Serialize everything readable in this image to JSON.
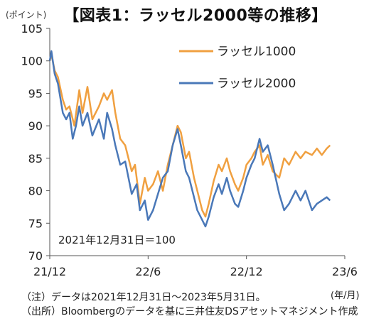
{
  "chart_data": {
    "type": "line",
    "title": "【図表1：ラッセル2000等の推移】",
    "ylabel": "(ポイント)",
    "xlabel": "(年/月)",
    "ylim": [
      70,
      105
    ],
    "yticks": [
      70,
      75,
      80,
      85,
      90,
      95,
      100,
      105
    ],
    "xticks": [
      "21/12",
      "22/6",
      "22/12",
      "23/6"
    ],
    "x_months_range": [
      0,
      18
    ],
    "grid": false,
    "legend_position": "top-right",
    "annotation": "2021年12月31日＝100",
    "series": [
      {
        "name": "ラッセル1000",
        "color": "#F0A040",
        "points": [
          [
            0.0,
            100
          ],
          [
            0.1,
            101
          ],
          [
            0.3,
            98.5
          ],
          [
            0.5,
            97.5
          ],
          [
            0.8,
            94
          ],
          [
            1.0,
            92.5
          ],
          [
            1.2,
            93
          ],
          [
            1.5,
            90
          ],
          [
            1.8,
            95.5
          ],
          [
            2.0,
            92
          ],
          [
            2.3,
            96
          ],
          [
            2.6,
            91
          ],
          [
            3.0,
            93
          ],
          [
            3.3,
            95
          ],
          [
            3.5,
            94
          ],
          [
            3.8,
            95.5
          ],
          [
            4.0,
            92
          ],
          [
            4.3,
            88
          ],
          [
            4.6,
            87
          ],
          [
            5.0,
            83
          ],
          [
            5.2,
            84
          ],
          [
            5.5,
            78
          ],
          [
            5.8,
            82
          ],
          [
            6.0,
            80
          ],
          [
            6.3,
            81
          ],
          [
            6.6,
            83
          ],
          [
            6.9,
            80
          ],
          [
            7.2,
            84
          ],
          [
            7.5,
            87
          ],
          [
            7.8,
            90
          ],
          [
            8.0,
            89
          ],
          [
            8.3,
            85
          ],
          [
            8.5,
            86
          ],
          [
            8.8,
            82
          ],
          [
            9.0,
            80
          ],
          [
            9.3,
            77
          ],
          [
            9.5,
            76
          ],
          [
            9.7,
            78
          ],
          [
            10.0,
            81.5
          ],
          [
            10.3,
            84
          ],
          [
            10.5,
            83
          ],
          [
            10.8,
            85
          ],
          [
            11.0,
            83
          ],
          [
            11.3,
            81
          ],
          [
            11.5,
            80
          ],
          [
            11.8,
            82
          ],
          [
            12.0,
            84
          ],
          [
            12.3,
            85
          ],
          [
            12.5,
            86
          ],
          [
            12.8,
            87
          ],
          [
            13.0,
            84
          ],
          [
            13.3,
            85.5
          ],
          [
            13.6,
            83
          ],
          [
            14.0,
            82
          ],
          [
            14.3,
            85
          ],
          [
            14.6,
            84
          ],
          [
            15.0,
            86
          ],
          [
            15.3,
            85
          ],
          [
            15.6,
            86
          ],
          [
            16.0,
            85.5
          ],
          [
            16.3,
            86.5
          ],
          [
            16.6,
            85.5
          ],
          [
            16.9,
            86.5
          ],
          [
            17.1,
            87
          ]
        ]
      },
      {
        "name": "ラッセル2000",
        "color": "#4A78B8",
        "points": [
          [
            0.0,
            100
          ],
          [
            0.1,
            101.5
          ],
          [
            0.3,
            98
          ],
          [
            0.5,
            96.5
          ],
          [
            0.8,
            92
          ],
          [
            1.0,
            91
          ],
          [
            1.2,
            92
          ],
          [
            1.4,
            88
          ],
          [
            1.6,
            90
          ],
          [
            1.8,
            93
          ],
          [
            2.0,
            90
          ],
          [
            2.3,
            92
          ],
          [
            2.6,
            88.5
          ],
          [
            3.0,
            91
          ],
          [
            3.3,
            88
          ],
          [
            3.5,
            92
          ],
          [
            3.8,
            89.5
          ],
          [
            4.0,
            87
          ],
          [
            4.3,
            84
          ],
          [
            4.6,
            84.5
          ],
          [
            5.0,
            79.5
          ],
          [
            5.3,
            81
          ],
          [
            5.5,
            77
          ],
          [
            5.8,
            78.5
          ],
          [
            6.0,
            75.5
          ],
          [
            6.3,
            77
          ],
          [
            6.6,
            79.5
          ],
          [
            6.9,
            82
          ],
          [
            7.2,
            83
          ],
          [
            7.5,
            87
          ],
          [
            7.8,
            89.5
          ],
          [
            8.0,
            87
          ],
          [
            8.3,
            83
          ],
          [
            8.5,
            82
          ],
          [
            8.8,
            79
          ],
          [
            9.0,
            77
          ],
          [
            9.3,
            75.5
          ],
          [
            9.5,
            74.5
          ],
          [
            9.7,
            76
          ],
          [
            10.0,
            79
          ],
          [
            10.3,
            81
          ],
          [
            10.5,
            79.5
          ],
          [
            10.8,
            82
          ],
          [
            11.0,
            80
          ],
          [
            11.3,
            78
          ],
          [
            11.5,
            77.5
          ],
          [
            11.8,
            80
          ],
          [
            12.0,
            82
          ],
          [
            12.3,
            84
          ],
          [
            12.5,
            85
          ],
          [
            12.8,
            88
          ],
          [
            13.0,
            86
          ],
          [
            13.3,
            87
          ],
          [
            13.6,
            84
          ],
          [
            14.0,
            79.5
          ],
          [
            14.3,
            77
          ],
          [
            14.6,
            78
          ],
          [
            15.0,
            80
          ],
          [
            15.3,
            78.5
          ],
          [
            15.6,
            80
          ],
          [
            16.0,
            77
          ],
          [
            16.3,
            78
          ],
          [
            16.6,
            78.5
          ],
          [
            16.9,
            79
          ],
          [
            17.1,
            78.5
          ]
        ]
      }
    ]
  },
  "footnotes": [
    "（注）データは2021年12月31日～2023年5月31日。",
    "（出所）Bloombergのデータを基に三井住友DSアセットマネジメント作成"
  ]
}
